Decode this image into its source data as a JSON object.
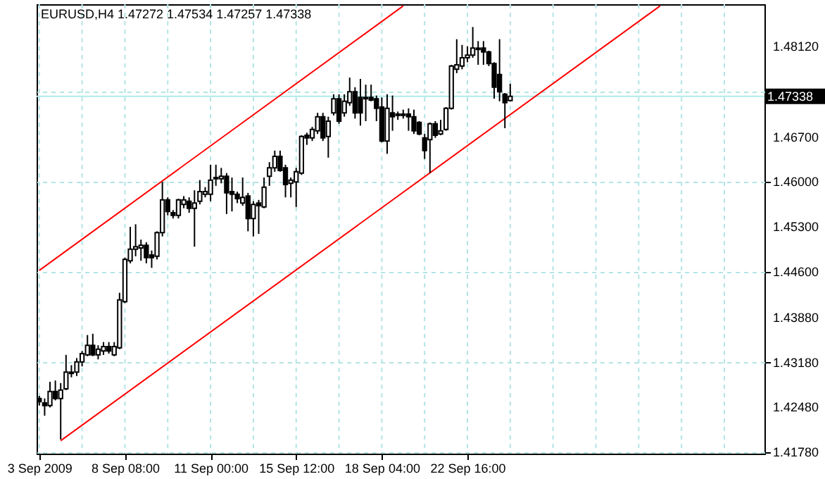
{
  "chart_data": {
    "type": "candlestick",
    "title": "EURUSD,H4 1.47272 1.47534 1.47257 1.47338",
    "color": "#000000",
    "categories": [
      "3 Sep 2009",
      null,
      null,
      null,
      null,
      null,
      null,
      null,
      null,
      null,
      null,
      null,
      null,
      null,
      null,
      null,
      "8 Sep 08:00",
      null,
      null,
      null,
      null,
      null,
      null,
      null,
      null,
      null,
      null,
      null,
      null,
      null,
      null,
      null,
      "11 Sep 00:00",
      null,
      null,
      null,
      null,
      null,
      null,
      null,
      null,
      null,
      null,
      null,
      null,
      null,
      null,
      null,
      "15 Sep 12:00",
      null,
      null,
      null,
      null,
      null,
      null,
      null,
      null,
      null,
      null,
      null,
      null,
      null,
      null,
      null,
      "18 Sep 04:00",
      null,
      null,
      null,
      null,
      null,
      null,
      null,
      null,
      null,
      null,
      null,
      null,
      null,
      null,
      null,
      "22 Sep 16:00",
      null,
      null,
      null,
      null,
      null,
      null,
      null,
      null,
      null,
      null,
      null,
      null,
      null,
      null,
      null,
      null,
      null,
      null,
      null,
      null,
      null,
      null,
      null,
      null,
      null,
      null,
      null,
      null,
      null,
      null,
      null,
      null,
      null,
      null,
      null,
      null,
      null,
      null,
      null,
      null,
      null,
      null,
      null,
      null,
      null,
      null,
      null,
      null,
      null,
      null,
      null,
      null,
      null,
      null,
      null
    ],
    "ohlc": [
      [
        1.4262,
        1.4266,
        1.4251,
        1.4257
      ],
      [
        1.4255,
        1.4262,
        1.4235,
        1.4251
      ],
      [
        1.4251,
        1.4288,
        1.4248,
        1.4273
      ],
      [
        1.4273,
        1.429,
        1.4259,
        1.4262
      ],
      [
        1.4262,
        1.4286,
        1.4198,
        1.4275
      ],
      [
        1.4277,
        1.433,
        1.4275,
        1.4303
      ],
      [
        1.4303,
        1.4314,
        1.4295,
        1.4301
      ],
      [
        1.4303,
        1.4325,
        1.4297,
        1.4319
      ],
      [
        1.4319,
        1.4336,
        1.4312,
        1.4332
      ],
      [
        1.433,
        1.4361,
        1.4328,
        1.4345
      ],
      [
        1.4345,
        1.4363,
        1.4328,
        1.433
      ],
      [
        1.433,
        1.4345,
        1.4323,
        1.4339
      ],
      [
        1.4336,
        1.435,
        1.433,
        1.4343
      ],
      [
        1.4343,
        1.435,
        1.4332,
        1.4336
      ],
      [
        1.433,
        1.435,
        1.4328,
        1.4343
      ],
      [
        1.4341,
        1.4427,
        1.4339,
        1.4416
      ],
      [
        1.4413,
        1.4482,
        1.4411,
        1.4479
      ],
      [
        1.4477,
        1.453,
        1.4473,
        1.4495
      ],
      [
        1.4495,
        1.4534,
        1.4484,
        1.4499
      ],
      [
        1.4497,
        1.451,
        1.4477,
        1.4501
      ],
      [
        1.4501,
        1.4506,
        1.4473,
        1.4482
      ],
      [
        1.4486,
        1.4493,
        1.4466,
        1.4482
      ],
      [
        1.4484,
        1.4523,
        1.4479,
        1.4521
      ],
      [
        1.4521,
        1.46,
        1.4515,
        1.4572
      ],
      [
        1.4572,
        1.4576,
        1.4548,
        1.4554
      ],
      [
        1.4552,
        1.4556,
        1.4543,
        1.4548
      ],
      [
        1.4548,
        1.4574,
        1.4543,
        1.4572
      ],
      [
        1.4565,
        1.4578,
        1.4559,
        1.4572
      ],
      [
        1.457,
        1.4576,
        1.4552,
        1.4559
      ],
      [
        1.4559,
        1.4587,
        1.4499,
        1.4567
      ],
      [
        1.457,
        1.4603,
        1.4565,
        1.4585
      ],
      [
        1.4581,
        1.4592,
        1.4576,
        1.4585
      ],
      [
        1.4581,
        1.4627,
        1.457,
        1.4603
      ],
      [
        1.4607,
        1.4627,
        1.4594,
        1.4605
      ],
      [
        1.4605,
        1.4622,
        1.4598,
        1.4609
      ],
      [
        1.4609,
        1.4614,
        1.455,
        1.4583
      ],
      [
        1.4585,
        1.4607,
        1.4554,
        1.4581
      ],
      [
        1.4581,
        1.4585,
        1.4567,
        1.4574
      ],
      [
        1.4567,
        1.4607,
        1.4563,
        1.4576
      ],
      [
        1.4578,
        1.4583,
        1.4523,
        1.4543
      ],
      [
        1.4543,
        1.457,
        1.4515,
        1.4565
      ],
      [
        1.4567,
        1.4572,
        1.4519,
        1.4563
      ],
      [
        1.4561,
        1.4607,
        1.4559,
        1.4592
      ],
      [
        1.4609,
        1.4631,
        1.4594,
        1.4622
      ],
      [
        1.4622,
        1.4649,
        1.4616,
        1.464
      ],
      [
        1.464,
        1.4649,
        1.4616,
        1.4618
      ],
      [
        1.4622,
        1.4627,
        1.4576,
        1.4596
      ],
      [
        1.4598,
        1.4607,
        1.4576,
        1.4603
      ],
      [
        1.46,
        1.4622,
        1.4561,
        1.4616
      ],
      [
        1.4614,
        1.4673,
        1.4611,
        1.4671
      ],
      [
        1.4673,
        1.4677,
        1.4658,
        1.4669
      ],
      [
        1.4669,
        1.4686,
        1.4664,
        1.4682
      ],
      [
        1.468,
        1.4708,
        1.4675,
        1.4702
      ],
      [
        1.4702,
        1.4708,
        1.4664,
        1.4669
      ],
      [
        1.4671,
        1.4702,
        1.4638,
        1.4695
      ],
      [
        1.4708,
        1.4737,
        1.4704,
        1.473
      ],
      [
        1.473,
        1.4737,
        1.4691,
        1.4695
      ],
      [
        1.4708,
        1.4737,
        1.4702,
        1.4726
      ],
      [
        1.4724,
        1.4763,
        1.4719,
        1.4741
      ],
      [
        1.4741,
        1.4748,
        1.4699,
        1.4708
      ],
      [
        1.4732,
        1.4761,
        1.4688,
        1.4708
      ],
      [
        1.4732,
        1.4752,
        1.4695,
        1.473
      ],
      [
        1.4732,
        1.4752,
        1.4726,
        1.4728
      ],
      [
        1.473,
        1.4735,
        1.4695,
        1.4715
      ],
      [
        1.4717,
        1.4732,
        1.4662,
        1.4664
      ],
      [
        1.4664,
        1.4737,
        1.4644,
        1.4715
      ],
      [
        1.4708,
        1.4735,
        1.468,
        1.4702
      ],
      [
        1.4704,
        1.471,
        1.4697,
        1.4706
      ],
      [
        1.4704,
        1.4713,
        1.4699,
        1.4706
      ],
      [
        1.4706,
        1.4715,
        1.468,
        1.4702
      ],
      [
        1.4702,
        1.4713,
        1.4675,
        1.468
      ],
      [
        1.4693,
        1.4695,
        1.4673,
        1.4675
      ],
      [
        1.4669,
        1.4675,
        1.4636,
        1.4649
      ],
      [
        1.4666,
        1.4693,
        1.4614,
        1.4691
      ],
      [
        1.4691,
        1.4695,
        1.4669,
        1.4673
      ],
      [
        1.4675,
        1.4697,
        1.4673,
        1.468
      ],
      [
        1.4682,
        1.4717,
        1.468,
        1.4715
      ],
      [
        1.4715,
        1.4783,
        1.4713,
        1.4781
      ],
      [
        1.4776,
        1.4823,
        1.477,
        1.4783
      ],
      [
        1.4781,
        1.4814,
        1.4776,
        1.4794
      ],
      [
        1.4794,
        1.4812,
        1.4787,
        1.4798
      ],
      [
        1.4798,
        1.4842,
        1.4794,
        1.4809
      ],
      [
        1.4809,
        1.482,
        1.4783,
        1.4807
      ],
      [
        1.4809,
        1.482,
        1.4783,
        1.4803
      ],
      [
        1.4803,
        1.4805,
        1.4781,
        1.4785
      ],
      [
        1.4785,
        1.4787,
        1.473,
        1.4748
      ],
      [
        1.4768,
        1.4823,
        1.4726,
        1.4741
      ],
      [
        1.4737,
        1.4739,
        1.4684,
        1.4724
      ],
      [
        1.47272,
        1.47534,
        1.47257,
        1.47338
      ],
      null,
      null,
      null,
      null,
      null,
      null,
      null,
      null,
      null,
      null,
      null,
      null,
      null,
      null,
      null,
      null,
      null,
      null,
      null,
      null,
      null,
      null,
      null,
      null,
      null,
      null,
      null,
      null,
      null,
      null,
      null,
      null,
      null,
      null,
      null,
      null,
      null,
      null,
      null,
      null,
      null,
      null,
      null,
      null,
      null,
      null,
      null
    ],
    "series": [
      {
        "type": "line",
        "color": "#ff0000",
        "values": [
          1.4462,
          null,
          null,
          null,
          null,
          null,
          null,
          null,
          null,
          null,
          null,
          null,
          null,
          null,
          null,
          null,
          null,
          null,
          null,
          null,
          null,
          null,
          null,
          null,
          null,
          null,
          null,
          null,
          null,
          null,
          null,
          null,
          null,
          null,
          null,
          null,
          null,
          null,
          null,
          null,
          null,
          null,
          null,
          null,
          null,
          null,
          null,
          null,
          null,
          null,
          null,
          null,
          null,
          null,
          null,
          null,
          null,
          null,
          null,
          null,
          null,
          null,
          null,
          null,
          null,
          null,
          null,
          null,
          1.4875,
          null,
          null,
          null,
          null,
          null,
          null,
          null,
          null,
          null,
          null,
          null,
          null,
          null,
          null,
          null,
          null,
          null,
          null,
          null,
          null,
          null,
          null,
          null,
          null,
          null,
          null,
          null,
          null,
          null,
          null,
          null,
          null,
          null,
          null,
          null,
          null,
          null,
          null,
          null,
          null,
          null,
          null,
          null,
          null,
          null,
          null,
          null,
          null,
          null,
          null,
          null,
          null,
          null,
          null,
          null,
          null,
          null,
          null,
          null,
          null,
          null,
          null,
          null,
          null,
          null,
          null,
          null
        ]
      },
      {
        "type": "line",
        "color": "#ff0000",
        "values": [
          null,
          null,
          null,
          null,
          1.4196,
          null,
          null,
          null,
          null,
          null,
          null,
          null,
          null,
          null,
          null,
          null,
          null,
          null,
          null,
          null,
          null,
          null,
          null,
          null,
          null,
          null,
          null,
          null,
          null,
          null,
          null,
          null,
          null,
          null,
          null,
          null,
          null,
          null,
          null,
          null,
          null,
          null,
          null,
          null,
          null,
          null,
          null,
          null,
          null,
          null,
          null,
          null,
          null,
          null,
          null,
          null,
          null,
          null,
          null,
          null,
          null,
          null,
          null,
          null,
          null,
          null,
          null,
          null,
          null,
          null,
          null,
          null,
          null,
          null,
          null,
          null,
          null,
          null,
          null,
          null,
          null,
          null,
          null,
          null,
          null,
          null,
          null,
          null,
          null,
          null,
          null,
          null,
          null,
          null,
          null,
          null,
          null,
          null,
          null,
          null,
          null,
          null,
          null,
          null,
          null,
          null,
          null,
          null,
          null,
          null,
          null,
          null,
          null,
          null,
          null,
          null,
          1.4875,
          null,
          null,
          null,
          null,
          null,
          null,
          null,
          null,
          null,
          null,
          null,
          null,
          null,
          null,
          null,
          null,
          null,
          null,
          null
        ]
      }
    ],
    "ref_lines": [
      {
        "axis": "y",
        "value": 1.47338,
        "label": "1.47338",
        "color": "#aeeaea"
      }
    ],
    "ylim": [
      1.41758,
      1.48776
    ],
    "yticks": [
      {
        "value": 1.4178,
        "label": "1.41780"
      },
      {
        "value": 1.4248,
        "label": "1.42480"
      },
      {
        "value": 1.4318,
        "label": "1.43180"
      },
      {
        "value": 1.4388,
        "label": "1.43880"
      },
      {
        "value": 1.446,
        "label": "1.44600"
      },
      {
        "value": 1.453,
        "label": "1.45300"
      },
      {
        "value": 1.46,
        "label": "1.46000"
      },
      {
        "value": 1.467,
        "label": "1.46700"
      },
      {
        "value": 1.4742,
        "label": null
      },
      {
        "value": 1.4812,
        "label": "1.48120"
      }
    ],
    "grid": true
  }
}
